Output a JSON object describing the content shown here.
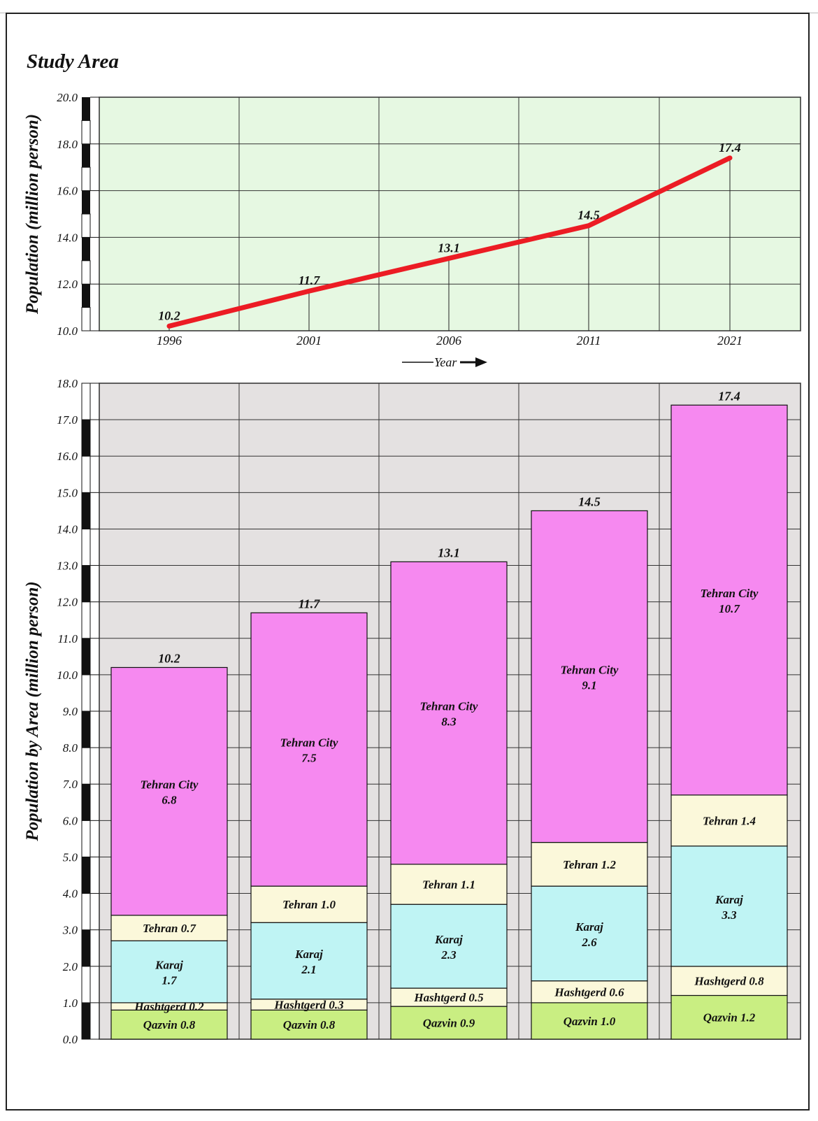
{
  "title": "Study Area",
  "colors": {
    "line_panel_bg": "#e6f8e2",
    "bar_panel_bg": "#e4e1e1",
    "line": "#ec1c24",
    "Qazvin": "#c9ee82",
    "Hashtgerd": "#fbf8da",
    "Karaj": "#bff4f4",
    "Tehran": "#fbf8da",
    "Tehran City": "#f689f0"
  },
  "chart_data": [
    {
      "type": "line",
      "x": [
        "1996",
        "2001",
        "2006",
        "2011",
        "2021"
      ],
      "y": [
        10.2,
        11.7,
        13.1,
        14.5,
        17.4
      ],
      "data_labels": [
        "10.2",
        "11.7",
        "13.1",
        "14.5",
        "17.4"
      ],
      "ylabel": "Population (million person)",
      "xlabel": "Year",
      "ylim": [
        10.0,
        20.0
      ],
      "yticks": [
        "10.0",
        "12.0",
        "14.0",
        "16.0",
        "18.0",
        "20.0"
      ],
      "grid": true
    },
    {
      "type": "bar",
      "stacked": true,
      "categories": [
        "1996",
        "2001",
        "2006",
        "2011",
        "2021"
      ],
      "series": [
        {
          "name": "Qazvin",
          "values": [
            0.8,
            0.8,
            0.9,
            1.0,
            1.2
          ],
          "labels": [
            "Qazvin 0.8",
            "Qazvin 0.8",
            "Qazvin 0.9",
            "Qazvin 1.0",
            "Qazvin 1.2"
          ]
        },
        {
          "name": "Hashtgerd",
          "values": [
            0.2,
            0.3,
            0.5,
            0.6,
            0.8
          ],
          "labels": [
            "Hashtgerd 0.2",
            "Hashtgerd 0.3",
            "Hashtgerd 0.5",
            "Hashtgerd 0.6",
            "Hashtgerd 0.8"
          ]
        },
        {
          "name": "Karaj",
          "values": [
            1.7,
            2.1,
            2.3,
            2.6,
            3.3
          ],
          "labels": [
            "Karaj\n1.7",
            "Karaj\n2.1",
            "Karaj\n2.3",
            "Karaj\n2.6",
            "Karaj\n3.3"
          ]
        },
        {
          "name": "Tehran",
          "values": [
            0.7,
            1.0,
            1.1,
            1.2,
            1.4
          ],
          "labels": [
            "Tehran 0.7",
            "Tehran 1.0",
            "Tehran 1.1",
            "Tehran 1.2",
            "Tehran 1.4"
          ]
        },
        {
          "name": "Tehran City",
          "values": [
            6.8,
            7.5,
            8.3,
            9.1,
            10.7
          ],
          "labels": [
            "Tehran City\n6.8",
            "Tehran City\n7.5",
            "Tehran City\n8.3",
            "Tehran City\n9.1",
            "Tehran City\n10.7"
          ]
        }
      ],
      "totals": [
        "10.2",
        "11.7",
        "13.1",
        "14.5",
        "17.4"
      ],
      "ylabel": "Population by Area (million person)",
      "ylim": [
        0.0,
        18.0
      ],
      "yticks": [
        "0.0",
        "1.0",
        "2.0",
        "3.0",
        "4.0",
        "5.0",
        "6.0",
        "7.0",
        "8.0",
        "9.0",
        "10.0",
        "11.0",
        "12.0",
        "13.0",
        "14.0",
        "15.0",
        "16.0",
        "17.0",
        "18.0"
      ],
      "grid": true
    }
  ]
}
